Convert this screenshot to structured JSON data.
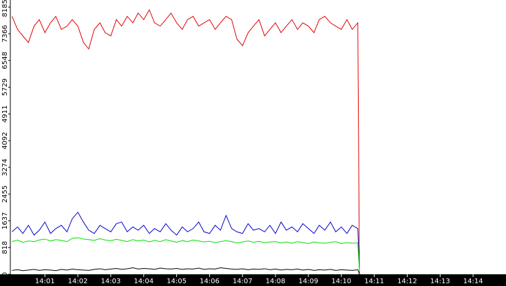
{
  "chart_data": {
    "type": "line",
    "x": [
      840,
      840.17,
      840.33,
      840.5,
      840.67,
      840.83,
      841,
      841.17,
      841.33,
      841.5,
      841.67,
      841.83,
      842,
      842.17,
      842.33,
      842.5,
      842.67,
      842.83,
      843,
      843.17,
      843.33,
      843.5,
      843.67,
      843.83,
      844,
      844.17,
      844.33,
      844.5,
      844.67,
      844.83,
      845,
      845.17,
      845.33,
      845.5,
      845.67,
      845.83,
      846,
      846.17,
      846.33,
      846.5,
      846.67,
      846.83,
      847,
      847.17,
      847.33,
      847.5,
      847.67,
      847.83,
      848,
      848.17,
      848.33,
      848.5,
      848.67,
      848.83,
      849,
      849.17,
      849.33,
      849.5,
      849.67,
      849.83,
      850,
      850.17,
      850.33,
      850.5,
      850.55
    ],
    "series": [
      {
        "color": "#e00000",
        "values": [
          7900,
          7500,
          7300,
          7100,
          7600,
          7800,
          7400,
          7700,
          7900,
          7500,
          7600,
          7800,
          7600,
          7100,
          6900,
          7500,
          7700,
          7400,
          7300,
          7800,
          7600,
          7900,
          7700,
          8000,
          7800,
          8100,
          7700,
          7600,
          7800,
          8000,
          7700,
          7500,
          7800,
          7900,
          7600,
          7700,
          7800,
          7500,
          7700,
          7900,
          7800,
          7200,
          7000,
          7400,
          7600,
          7800,
          7300,
          7500,
          7700,
          7400,
          7600,
          7800,
          7500,
          7700,
          7600,
          7400,
          7800,
          7900,
          7700,
          7600,
          7500,
          7800,
          7500,
          7700,
          0
        ]
      },
      {
        "color": "#0000d0",
        "values": [
          1300,
          1450,
          1250,
          1500,
          1200,
          1350,
          1600,
          1250,
          1400,
          1500,
          1300,
          1700,
          1900,
          1600,
          1350,
          1250,
          1500,
          1400,
          1300,
          1550,
          1600,
          1300,
          1450,
          1350,
          1500,
          1250,
          1400,
          1300,
          1550,
          1350,
          1200,
          1450,
          1300,
          1400,
          1600,
          1300,
          1250,
          1500,
          1350,
          1800,
          1400,
          1300,
          1250,
          1550,
          1350,
          1400,
          1300,
          1500,
          1250,
          1600,
          1350,
          1450,
          1300,
          1550,
          1400,
          1250,
          1500,
          1350,
          1600,
          1300,
          1450,
          1250,
          1500,
          1400,
          100
        ]
      },
      {
        "color": "#00e000",
        "values": [
          1000,
          1050,
          980,
          1020,
          1000,
          1050,
          1080,
          1020,
          1060,
          1040,
          1000,
          1100,
          1120,
          1080,
          1060,
          1040,
          1090,
          1050,
          1030,
          1070,
          1040,
          1000,
          1060,
          1020,
          1050,
          990,
          1040,
          1000,
          1060,
          1020,
          980,
          1030,
          1000,
          1050,
          1020,
          990,
          1010,
          970,
          1000,
          1030,
          1000,
          960,
          990,
          1020,
          980,
          1010,
          970,
          990,
          1000,
          960,
          990,
          950,
          1000,
          970,
          940,
          990,
          960,
          950,
          980,
          1000,
          940,
          970,
          950,
          960,
          100
        ]
      },
      {
        "color": "#000000",
        "values": [
          120,
          140,
          110,
          130,
          150,
          120,
          140,
          130,
          110,
          150,
          130,
          160,
          140,
          130,
          120,
          150,
          170,
          140,
          160,
          180,
          150,
          170,
          200,
          160,
          180,
          170,
          150,
          190,
          170,
          160,
          180,
          150,
          170,
          160,
          190,
          150,
          170,
          160,
          200,
          180,
          160,
          150,
          170,
          140,
          160,
          150,
          170,
          140,
          160,
          130,
          150,
          140,
          160,
          130,
          150,
          120,
          140,
          130,
          150,
          120,
          140,
          130,
          120,
          140,
          0
        ]
      }
    ],
    "xlim": [
      839.95,
      855
    ],
    "xticks": [
      {
        "value": 841,
        "label": "14:01"
      },
      {
        "value": 842,
        "label": "14:02"
      },
      {
        "value": 843,
        "label": "14:03"
      },
      {
        "value": 844,
        "label": "14:04"
      },
      {
        "value": 845,
        "label": "14:05"
      },
      {
        "value": 846,
        "label": "14:06"
      },
      {
        "value": 847,
        "label": "14:07"
      },
      {
        "value": 848,
        "label": "14:08"
      },
      {
        "value": 849,
        "label": "14:09"
      },
      {
        "value": 850,
        "label": "14:10"
      },
      {
        "value": 851,
        "label": "14:11"
      },
      {
        "value": 852,
        "label": "14:12"
      },
      {
        "value": 853,
        "label": "14:13"
      },
      {
        "value": 854,
        "label": "14:14"
      }
    ],
    "ylim": [
      0,
      8400
    ],
    "yticks": [
      0,
      818,
      1637,
      2455,
      3274,
      4092,
      4911,
      5729,
      6548,
      7366,
      8185
    ]
  }
}
